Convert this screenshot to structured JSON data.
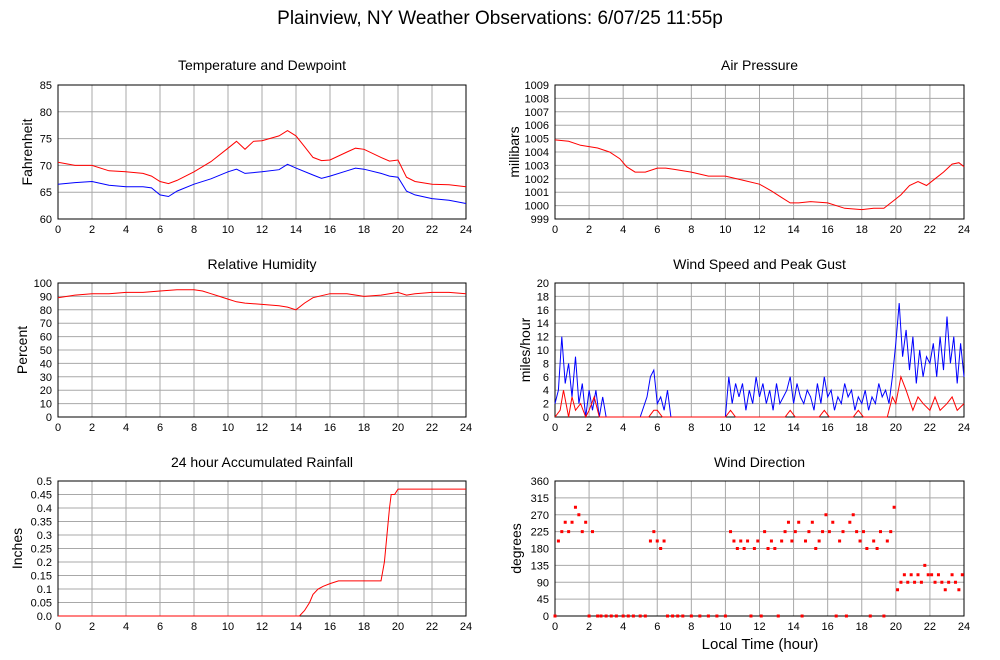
{
  "page": {
    "title": "Plainview, NY Weather Observations: 6/07/25 11:55p",
    "x_axis_label": "Local Time (hour)"
  },
  "chart_data": [
    {
      "type": "line",
      "title": "Temperature and Dewpoint",
      "ylabel": "Fahrenheit",
      "xlim": [
        0,
        24
      ],
      "ylim": [
        60,
        85
      ],
      "xticks": [
        0,
        2,
        4,
        6,
        8,
        10,
        12,
        14,
        16,
        18,
        20,
        22,
        24
      ],
      "yticks": [
        60,
        65,
        70,
        75,
        80,
        85
      ],
      "ytick_labels": [
        "60",
        "65",
        "70",
        "75",
        "80",
        "85"
      ],
      "grid": true,
      "series": [
        {
          "color": "#ff0000",
          "x": [
            0,
            1,
            2,
            3,
            4,
            5,
            5.5,
            6,
            6.5,
            7,
            8,
            9,
            10,
            10.5,
            11,
            11.5,
            12,
            13,
            13.5,
            14,
            14.5,
            15,
            15.5,
            16,
            17,
            17.5,
            18,
            19,
            19.5,
            20,
            20.5,
            21,
            22,
            23,
            24
          ],
          "y": [
            70.6,
            70.0,
            70.0,
            69.0,
            68.8,
            68.5,
            68.0,
            67.0,
            66.6,
            67.2,
            68.8,
            70.7,
            73.2,
            74.5,
            73.0,
            74.5,
            74.6,
            75.5,
            76.5,
            75.5,
            73.5,
            71.5,
            70.9,
            71.0,
            72.5,
            73.2,
            73.0,
            71.5,
            70.8,
            71.0,
            67.8,
            67.0,
            66.5,
            66.4,
            66.0
          ]
        },
        {
          "color": "#0000ff",
          "x": [
            0,
            1,
            2,
            3,
            4,
            5,
            5.5,
            6,
            6.5,
            7,
            8,
            9,
            10,
            10.5,
            11,
            12,
            13,
            13.5,
            14,
            15,
            15.5,
            16,
            17,
            17.5,
            18,
            19,
            19.5,
            20,
            20.5,
            21,
            22,
            23,
            24
          ],
          "y": [
            66.5,
            66.8,
            67.0,
            66.3,
            66.0,
            66.0,
            65.8,
            64.5,
            64.2,
            65.2,
            66.5,
            67.5,
            68.8,
            69.3,
            68.5,
            68.8,
            69.2,
            70.2,
            69.5,
            68.2,
            67.6,
            68.0,
            69.0,
            69.5,
            69.3,
            68.5,
            68.0,
            67.8,
            65.2,
            64.5,
            63.8,
            63.5,
            62.9
          ]
        }
      ]
    },
    {
      "type": "line",
      "title": "Air Pressure",
      "ylabel": "millibars",
      "xlim": [
        0,
        24
      ],
      "ylim": [
        999,
        1009
      ],
      "xticks": [
        0,
        2,
        4,
        6,
        8,
        10,
        12,
        14,
        16,
        18,
        20,
        22,
        24
      ],
      "yticks": [
        999,
        1000,
        1001,
        1002,
        1003,
        1004,
        1005,
        1006,
        1007,
        1008,
        1009
      ],
      "ytick_labels": [
        "999",
        "1000",
        "1001",
        "1002",
        "1003",
        "1004",
        "1005",
        "1006",
        "1007",
        "1008",
        "1009"
      ],
      "grid": true,
      "series": [
        {
          "color": "#ff0000",
          "x": [
            0,
            0.8,
            1.5,
            2.5,
            3.2,
            3.8,
            4.2,
            4.7,
            5.3,
            6,
            6.5,
            7,
            8,
            9,
            10,
            11,
            12,
            12.7,
            13.3,
            13.8,
            14.3,
            15,
            16,
            17,
            18,
            18.7,
            19.3,
            19.8,
            20.3,
            20.8,
            21.3,
            21.8,
            22.3,
            22.8,
            23.3,
            23.7,
            24
          ],
          "y": [
            1004.9,
            1004.8,
            1004.5,
            1004.3,
            1004.0,
            1003.5,
            1002.9,
            1002.5,
            1002.5,
            1002.8,
            1002.8,
            1002.7,
            1002.5,
            1002.2,
            1002.2,
            1001.9,
            1001.6,
            1001.1,
            1000.6,
            1000.2,
            1000.2,
            1000.3,
            1000.2,
            999.8,
            999.7,
            999.8,
            999.8,
            1000.3,
            1000.8,
            1001.5,
            1001.8,
            1001.5,
            1002.0,
            1002.5,
            1003.1,
            1003.2,
            1002.9
          ]
        }
      ]
    },
    {
      "type": "line",
      "title": "Relative Humidity",
      "ylabel": "Percent",
      "xlim": [
        0,
        24
      ],
      "ylim": [
        0,
        100
      ],
      "xticks": [
        0,
        2,
        4,
        6,
        8,
        10,
        12,
        14,
        16,
        18,
        20,
        22,
        24
      ],
      "yticks": [
        0,
        10,
        20,
        30,
        40,
        50,
        60,
        70,
        80,
        90,
        100
      ],
      "ytick_labels": [
        "0",
        "10",
        "20",
        "30",
        "40",
        "50",
        "60",
        "70",
        "80",
        "90",
        "100"
      ],
      "grid": true,
      "series": [
        {
          "color": "#ff0000",
          "x": [
            0,
            1,
            2,
            3,
            4,
            5,
            6,
            7,
            8,
            8.5,
            9,
            9.5,
            10,
            10.5,
            11,
            12,
            13,
            13.5,
            14,
            14.5,
            15,
            16,
            17,
            18,
            19,
            19.5,
            20,
            20.5,
            21,
            22,
            23,
            24
          ],
          "y": [
            89,
            91,
            92,
            92,
            93,
            93,
            94,
            95,
            95,
            94,
            92,
            90,
            88,
            86,
            85,
            84,
            83,
            82,
            80,
            85,
            89,
            92,
            92,
            90,
            91,
            92,
            93,
            91,
            92,
            93,
            93,
            92
          ]
        }
      ]
    },
    {
      "type": "line",
      "title": "Wind Speed and Peak Gust",
      "ylabel": "miles/hour",
      "xlim": [
        0,
        24
      ],
      "ylim": [
        0,
        20
      ],
      "xticks": [
        0,
        2,
        4,
        6,
        8,
        10,
        12,
        14,
        16,
        18,
        20,
        22,
        24
      ],
      "yticks": [
        0,
        2,
        4,
        6,
        8,
        10,
        12,
        14,
        16,
        18,
        20
      ],
      "ytick_labels": [
        "0",
        "2",
        "4",
        "6",
        "8",
        "10",
        "12",
        "14",
        "16",
        "18",
        "20"
      ],
      "grid": true,
      "series": [
        {
          "color": "#0000ff",
          "x": [
            0,
            0.2,
            0.4,
            0.6,
            0.8,
            1.0,
            1.2,
            1.4,
            1.6,
            1.8,
            2.0,
            2.2,
            2.4,
            2.6,
            2.8,
            3.0,
            3.5,
            4.0,
            4.5,
            5.0,
            5.4,
            5.6,
            5.8,
            6.0,
            6.2,
            6.4,
            6.6,
            6.8,
            7.0,
            8,
            9,
            10,
            10.2,
            10.4,
            10.6,
            10.8,
            11.0,
            11.2,
            11.4,
            11.6,
            11.8,
            12.0,
            12.2,
            12.4,
            12.6,
            12.8,
            13.0,
            13.2,
            13.4,
            13.6,
            13.8,
            14.0,
            14.2,
            14.4,
            14.6,
            14.8,
            15.0,
            15.2,
            15.4,
            15.6,
            15.8,
            16.0,
            16.2,
            16.4,
            16.6,
            16.8,
            17.0,
            17.2,
            17.4,
            17.6,
            17.8,
            18.0,
            18.2,
            18.4,
            18.6,
            18.8,
            19.0,
            19.2,
            19.4,
            19.6,
            19.8,
            20.0,
            20.2,
            20.4,
            20.6,
            20.8,
            21.0,
            21.2,
            21.4,
            21.6,
            21.8,
            22.0,
            22.2,
            22.4,
            22.6,
            22.8,
            23.0,
            23.2,
            23.4,
            23.6,
            23.8,
            24.0
          ],
          "y": [
            2,
            4,
            12,
            5,
            8,
            3,
            9,
            2,
            5,
            0,
            4,
            1,
            4,
            0,
            3,
            0,
            0,
            0,
            0,
            0,
            3,
            6,
            7,
            2,
            3,
            1,
            4,
            0,
            0,
            0,
            0,
            0,
            6,
            2,
            5,
            3,
            5,
            1,
            4,
            2,
            6,
            3,
            5,
            2,
            4,
            1,
            5,
            2,
            3,
            4,
            6,
            2,
            5,
            3,
            2,
            4,
            3,
            1,
            5,
            2,
            6,
            3,
            4,
            1,
            3,
            2,
            5,
            3,
            4,
            1,
            3,
            2,
            4,
            1,
            3,
            2,
            5,
            3,
            4,
            2,
            6,
            11,
            17,
            9,
            13,
            7,
            12,
            5,
            10,
            6,
            9,
            8,
            11,
            6,
            12,
            7,
            15,
            8,
            12,
            5,
            11,
            6
          ]
        },
        {
          "color": "#ff0000",
          "x": [
            0,
            0.3,
            0.5,
            0.8,
            1.0,
            1.2,
            1.5,
            1.8,
            2.0,
            2.3,
            2.6,
            3.0,
            5.5,
            5.8,
            6.0,
            6.3,
            10,
            10.3,
            10.6,
            12,
            13.5,
            13.8,
            14.1,
            14.5,
            15.5,
            15.8,
            16.1,
            17.5,
            17.8,
            18.1,
            19.5,
            19.8,
            20.0,
            20.3,
            20.6,
            21.0,
            21.3,
            21.6,
            22.0,
            22.3,
            22.6,
            23.0,
            23.3,
            23.6,
            24.0
          ],
          "y": [
            0,
            1,
            4,
            0,
            3,
            1,
            2,
            0,
            1,
            3,
            0,
            0,
            0,
            1,
            1,
            0,
            0,
            1,
            0,
            0,
            0,
            1,
            0,
            0,
            0,
            1,
            0,
            0,
            1,
            0,
            0,
            3,
            2,
            6,
            4,
            1,
            3,
            2,
            1,
            3,
            1,
            2,
            3,
            1,
            2
          ]
        }
      ]
    },
    {
      "type": "line",
      "title": "24 hour Accumulated Rainfall",
      "ylabel": "Inches",
      "xlim": [
        0,
        24
      ],
      "ylim": [
        0,
        0.5
      ],
      "xticks": [
        0,
        2,
        4,
        6,
        8,
        10,
        12,
        14,
        16,
        18,
        20,
        22,
        24
      ],
      "yticks": [
        0,
        0.05,
        0.1,
        0.15,
        0.2,
        0.25,
        0.3,
        0.35,
        0.4,
        0.45,
        0.5
      ],
      "ytick_labels": [
        "0.0",
        "0.05",
        "0.1",
        "0.15",
        "0.2",
        "0.25",
        "0.3",
        "0.35",
        "0.4",
        "0.45",
        "0.5"
      ],
      "grid": true,
      "series": [
        {
          "color": "#ff0000",
          "x": [
            0,
            14.2,
            14.5,
            14.8,
            15.0,
            15.3,
            15.6,
            16.0,
            16.5,
            17,
            18,
            19.0,
            19.2,
            19.5,
            19.6,
            19.8,
            20.0,
            21,
            22,
            23,
            24
          ],
          "y": [
            0,
            0,
            0.02,
            0.05,
            0.08,
            0.1,
            0.11,
            0.12,
            0.13,
            0.13,
            0.13,
            0.13,
            0.2,
            0.4,
            0.45,
            0.45,
            0.47,
            0.47,
            0.47,
            0.47,
            0.47
          ]
        }
      ]
    },
    {
      "type": "scatter",
      "title": "Wind Direction",
      "ylabel": "degrees",
      "xlim": [
        0,
        24
      ],
      "ylim": [
        0,
        360
      ],
      "xticks": [
        0,
        2,
        4,
        6,
        8,
        10,
        12,
        14,
        16,
        18,
        20,
        22,
        24
      ],
      "yticks": [
        0,
        45,
        90,
        135,
        180,
        225,
        270,
        315,
        360
      ],
      "ytick_labels": [
        "0",
        "45",
        "90",
        "135",
        "180",
        "225",
        "270",
        "315",
        "360"
      ],
      "grid": true,
      "series": [
        {
          "color": "#ff0000",
          "x": [
            0.0,
            0.2,
            0.4,
            0.6,
            0.8,
            1.0,
            1.2,
            1.4,
            1.6,
            1.8,
            2.0,
            2.2,
            2.5,
            2.7,
            3.0,
            3.3,
            3.6,
            4.0,
            4.3,
            4.6,
            5.0,
            5.3,
            5.6,
            5.8,
            6.0,
            6.2,
            6.4,
            6.6,
            6.9,
            7.2,
            7.5,
            8.0,
            8.5,
            9.0,
            9.5,
            10.0,
            10.3,
            10.5,
            10.7,
            10.9,
            11.1,
            11.3,
            11.5,
            11.7,
            11.9,
            12.1,
            12.3,
            12.5,
            12.7,
            12.9,
            13.1,
            13.3,
            13.5,
            13.7,
            13.9,
            14.1,
            14.3,
            14.5,
            14.7,
            14.9,
            15.1,
            15.3,
            15.5,
            15.7,
            15.9,
            16.1,
            16.3,
            16.5,
            16.7,
            16.9,
            17.1,
            17.3,
            17.5,
            17.7,
            17.9,
            18.1,
            18.3,
            18.5,
            18.7,
            18.9,
            19.1,
            19.3,
            19.5,
            19.7,
            19.9,
            20.1,
            20.3,
            20.5,
            20.7,
            20.9,
            21.1,
            21.3,
            21.5,
            21.7,
            21.9,
            22.1,
            22.3,
            22.5,
            22.7,
            22.9,
            23.1,
            23.3,
            23.5,
            23.7,
            23.9
          ],
          "y": [
            0,
            200,
            225,
            250,
            225,
            250,
            290,
            270,
            225,
            250,
            0,
            225,
            0,
            0,
            0,
            0,
            0,
            0,
            0,
            0,
            0,
            0,
            200,
            225,
            200,
            180,
            200,
            0,
            0,
            0,
            0,
            0,
            0,
            0,
            0,
            0,
            225,
            200,
            180,
            200,
            180,
            200,
            0,
            180,
            200,
            0,
            225,
            180,
            200,
            180,
            0,
            200,
            225,
            250,
            200,
            225,
            250,
            0,
            200,
            225,
            250,
            180,
            200,
            225,
            270,
            225,
            250,
            0,
            200,
            225,
            0,
            250,
            270,
            225,
            200,
            225,
            180,
            0,
            200,
            180,
            225,
            0,
            200,
            225,
            290,
            70,
            90,
            110,
            90,
            110,
            90,
            110,
            90,
            135,
            110,
            110,
            90,
            110,
            90,
            70,
            90,
            110,
            90,
            70,
            110
          ]
        }
      ]
    }
  ]
}
